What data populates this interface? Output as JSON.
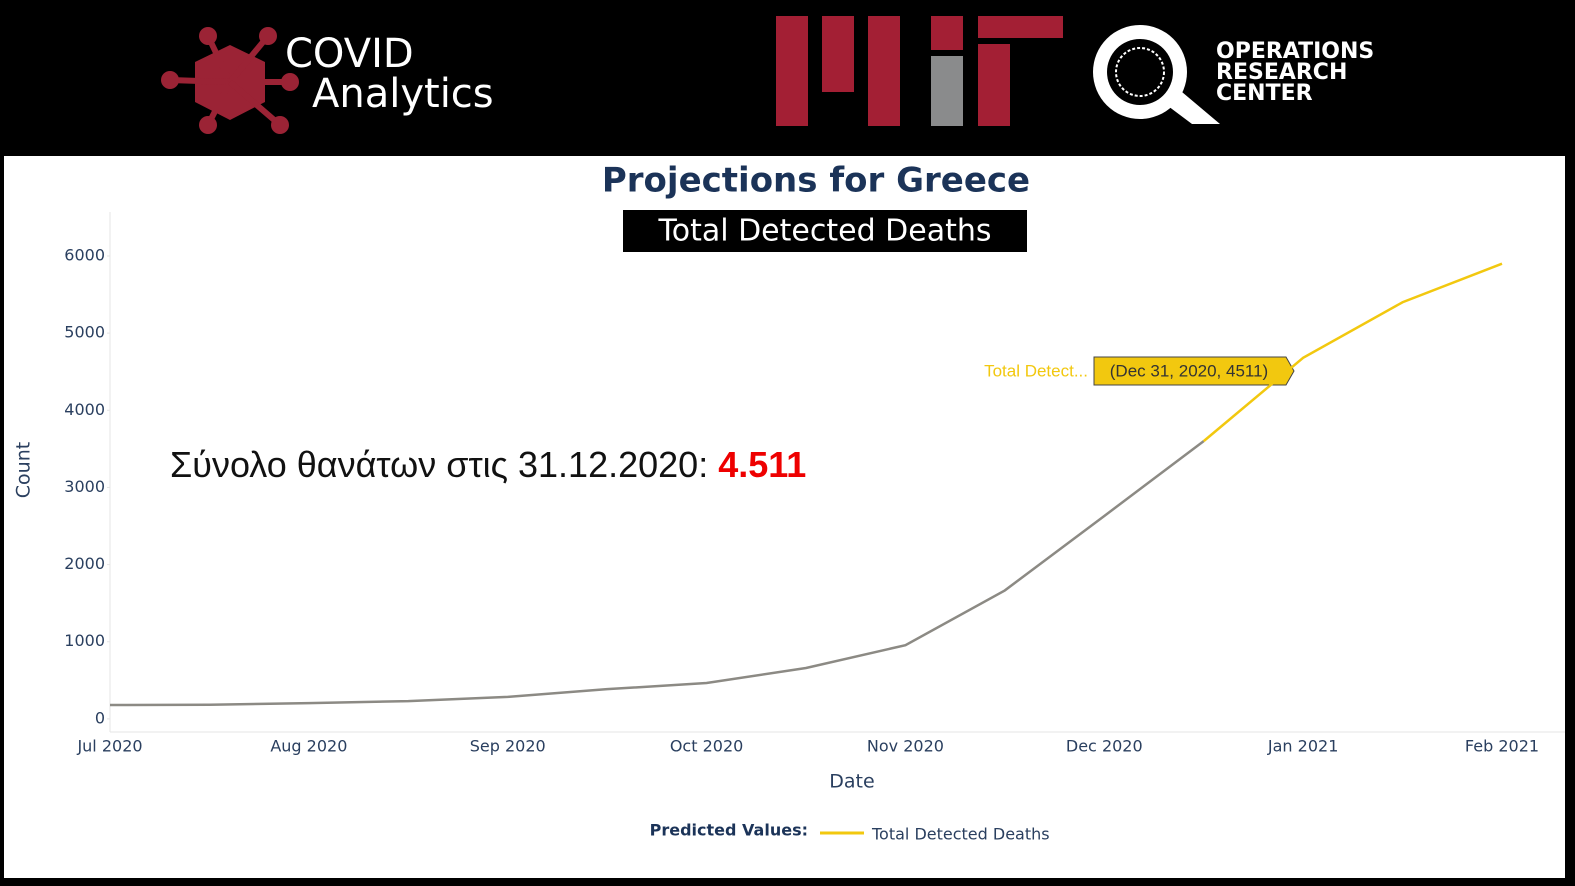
{
  "header": {
    "covid_line1": "COVID",
    "covid_line2": "Analytics",
    "orc_line1": "OPERATIONS",
    "orc_line2": "RESEARCH",
    "orc_line3": "CENTER"
  },
  "chart_data": {
    "type": "line",
    "title": "Projections for Greece",
    "subtitle": "Total Detected Deaths",
    "x_label": "Date",
    "y_label": "Count",
    "categories": [
      "Jul 2020",
      null,
      "Aug 2020",
      null,
      "Sep 2020",
      null,
      "Oct 2020",
      null,
      "Nov 2020",
      null,
      "Dec 2020",
      null,
      "Jan 2021",
      null,
      "Feb 2021"
    ],
    "series": [
      {
        "color": "#8c8a84",
        "values": [
          180,
          183,
          205,
          230,
          285,
          385,
          465,
          660,
          955,
          1665,
          2630,
          3600,
          null,
          null,
          null
        ]
      },
      {
        "name": "Total Detected Deaths",
        "color": "#f2c80f",
        "values": [
          null,
          null,
          null,
          null,
          null,
          null,
          null,
          null,
          null,
          null,
          null,
          3600,
          4680,
          5400,
          5900
        ]
      }
    ],
    "ylim": [
      -170,
      6570
    ],
    "yticks": [
      0,
      1000,
      2000,
      3000,
      4000,
      5000,
      6000
    ],
    "legend_title": "Predicted Values:",
    "hover_name": "Total Detect...",
    "hover_value": "(Dec 31, 2020, 4511)",
    "annotation_text": "Σύνολο θανάτων στις 31.12.2020: ",
    "annotation_value": "4.511"
  }
}
